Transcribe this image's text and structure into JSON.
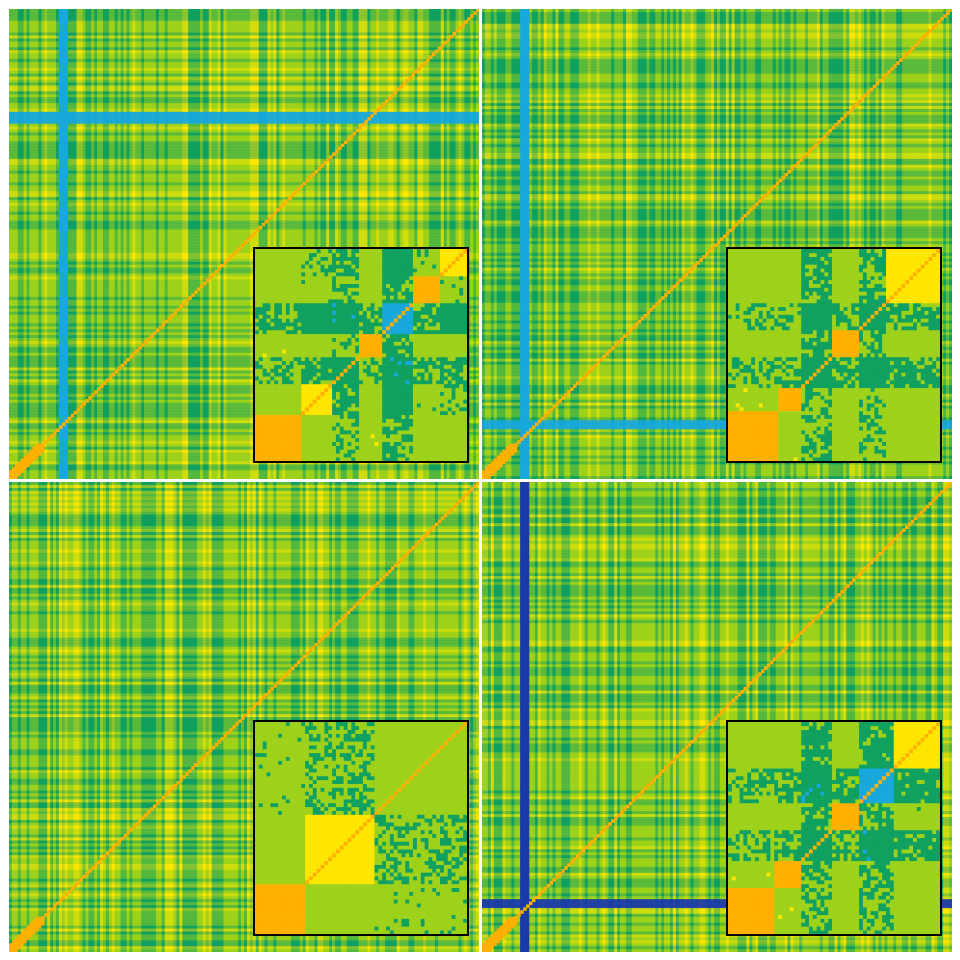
{
  "chart_data": [
    {
      "type": "heatmap",
      "colormap": [
        "#1a3aa8",
        "#17a8dc",
        "#10a060",
        "#9ed21a",
        "#ffe600",
        "#ffb000",
        "#ee2222"
      ],
      "diagonal_value": 1.0,
      "matrix_size": 160,
      "stripe_rows": [
        35,
        36,
        37,
        38
      ],
      "stripe_cols": [
        17,
        18,
        19
      ],
      "stripe_value": 0.18,
      "inset": {
        "type": "heatmap",
        "blocks": [
          {
            "from": 0,
            "to": 11,
            "value": 1.0
          },
          {
            "from": 12,
            "to": 19,
            "value": 0.72
          },
          {
            "from": 20,
            "to": 26,
            "value": 0.4
          },
          {
            "from": 27,
            "to": 32,
            "value": 0.95
          },
          {
            "from": 33,
            "to": 40,
            "value": 0.25
          },
          {
            "from": 41,
            "to": 47,
            "value": 0.9
          },
          {
            "from": 48,
            "to": 54,
            "value": 0.7
          }
        ]
      }
    },
    {
      "type": "heatmap",
      "colormap": [
        "#1a3aa8",
        "#17a8dc",
        "#10a060",
        "#9ed21a",
        "#ffe600",
        "#ffb000",
        "#ee2222"
      ],
      "diagonal_value": 1.0,
      "matrix_size": 160,
      "stripe_rows": [
        140,
        141,
        142
      ],
      "stripe_cols": [
        13,
        14,
        15
      ],
      "stripe_value": 0.18,
      "inset": {
        "type": "heatmap",
        "blocks": [
          {
            "from": 0,
            "to": 12,
            "value": 1.0
          },
          {
            "from": 13,
            "to": 18,
            "value": 0.95
          },
          {
            "from": 19,
            "to": 26,
            "value": 0.35
          },
          {
            "from": 27,
            "to": 33,
            "value": 0.9
          },
          {
            "from": 34,
            "to": 40,
            "value": 0.45
          },
          {
            "from": 41,
            "to": 54,
            "value": 0.8
          }
        ]
      }
    },
    {
      "type": "heatmap",
      "colormap": [
        "#1a3aa8",
        "#17a8dc",
        "#10a060",
        "#9ed21a",
        "#ffe600",
        "#ffb000",
        "#ee2222"
      ],
      "diagonal_value": 1.0,
      "matrix_size": 160,
      "stripe_rows": [],
      "stripe_cols": [],
      "stripe_value": 0.3,
      "inset": {
        "type": "heatmap",
        "blocks": [
          {
            "from": 0,
            "to": 12,
            "value": 1.0
          },
          {
            "from": 13,
            "to": 30,
            "value": 0.78
          },
          {
            "from": 31,
            "to": 54,
            "value": 0.6
          }
        ]
      }
    },
    {
      "type": "heatmap",
      "colormap": [
        "#1a3aa8",
        "#17a8dc",
        "#10a060",
        "#9ed21a",
        "#ffe600",
        "#ffb000",
        "#ee2222"
      ],
      "diagonal_value": 1.0,
      "matrix_size": 160,
      "stripe_rows": [
        142,
        143,
        144
      ],
      "stripe_cols": [
        13,
        14,
        15
      ],
      "stripe_value": 0.15,
      "inset": {
        "type": "heatmap",
        "blocks": [
          {
            "from": 0,
            "to": 11,
            "value": 1.0
          },
          {
            "from": 12,
            "to": 18,
            "value": 0.95
          },
          {
            "from": 19,
            "to": 26,
            "value": 0.35
          },
          {
            "from": 27,
            "to": 33,
            "value": 0.9
          },
          {
            "from": 34,
            "to": 42,
            "value": 0.3
          },
          {
            "from": 43,
            "to": 54,
            "value": 0.75
          }
        ]
      }
    }
  ]
}
